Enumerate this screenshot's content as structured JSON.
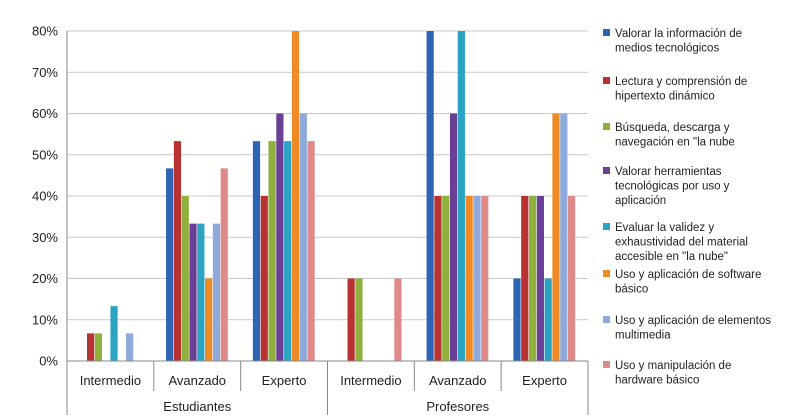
{
  "chart_data": {
    "type": "bar",
    "group_labels": [
      "Estudiantes",
      "Profesores"
    ],
    "categories": [
      "Intermedio",
      "Avanzado",
      "Experto",
      "Intermedio",
      "Avanzado",
      "Experto"
    ],
    "ylim": [
      0,
      80
    ],
    "y_ticks": [
      "0%",
      "10%",
      "20%",
      "30%",
      "40%",
      "50%",
      "60%",
      "70%",
      "80%"
    ],
    "grid": true,
    "legend_position": "right",
    "series": [
      {
        "name": "Valorar la información de medios tecnológicos",
        "color": "#2e64b4",
        "values": [
          0,
          46.7,
          53.3,
          0,
          80,
          20
        ]
      },
      {
        "name": "Lectura y comprensión de hipertexto dinámico",
        "color": "#b83232",
        "values": [
          6.7,
          53.3,
          40,
          20,
          40,
          40
        ]
      },
      {
        "name": "Búsqueda, descarga y navegación en \"la nube",
        "color": "#8fb03c",
        "values": [
          6.7,
          40,
          53.3,
          20,
          40,
          40
        ]
      },
      {
        "name": "Valorar herramientas tecnológicas por uso y aplicación",
        "color": "#6a3f96",
        "values": [
          0,
          33.3,
          60,
          0,
          60,
          40
        ]
      },
      {
        "name": "Evaluar la validez y exhaustividad del material accesible en \"la nube\"",
        "color": "#2ba3c3",
        "values": [
          13.3,
          33.3,
          53.3,
          0,
          80,
          20
        ]
      },
      {
        "name": "Uso y aplicación de software básico",
        "color": "#f08a24",
        "values": [
          0,
          20,
          80,
          0,
          40,
          60
        ]
      },
      {
        "name": "Uso y aplicación de elementos multimedia",
        "color": "#8eaadb",
        "values": [
          6.7,
          33.3,
          60,
          0,
          40,
          60
        ]
      },
      {
        "name": "Uso y manipulación de hardware básico",
        "color": "#dd8a88",
        "values": [
          0,
          46.7,
          53.3,
          20,
          40,
          40
        ]
      }
    ],
    "legend_lines": [
      [
        "Valorar la información de",
        "medios tecnológicos"
      ],
      [
        "Lectura y comprensión de",
        "hipertexto dinámico"
      ],
      [
        "Búsqueda, descarga y",
        "navegación en \"la nube"
      ],
      [
        "Valorar herramientas",
        "tecnológicas por uso y",
        "aplicación"
      ],
      [
        "Evaluar la validez y",
        "exhaustividad del material",
        "accesible en \"la nube\""
      ],
      [
        "Uso y aplicación de software",
        "básico"
      ],
      [
        "Uso y aplicación de elementos",
        "multimedia"
      ],
      [
        "Uso y manipulación de",
        "hardware básico"
      ]
    ]
  }
}
